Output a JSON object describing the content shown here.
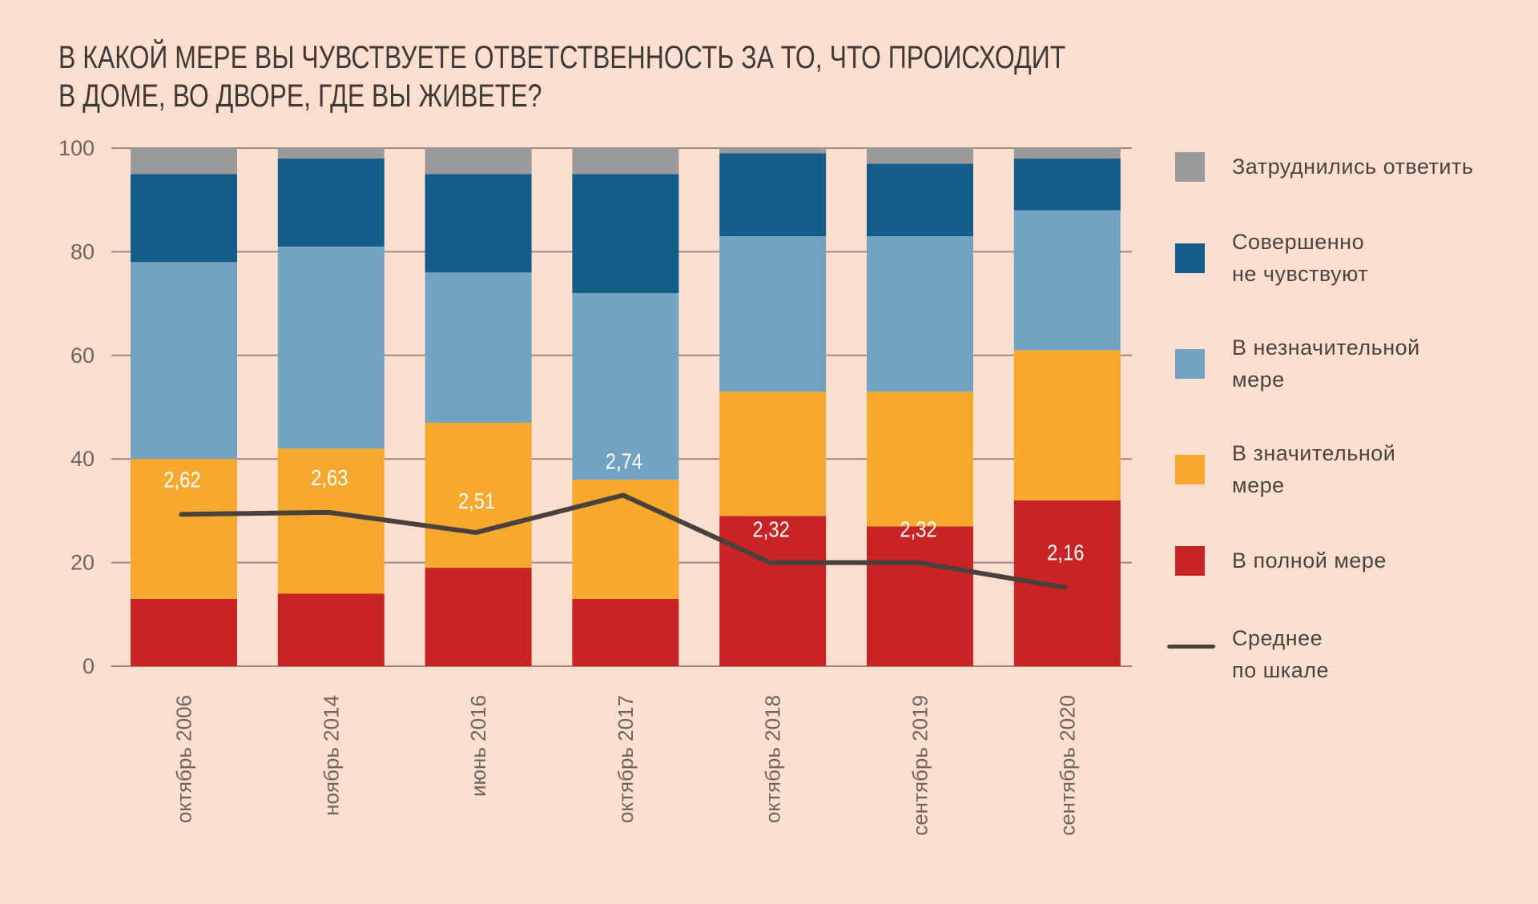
{
  "chart_data": {
    "type": "bar",
    "stacked": true,
    "title": "В КАКОЙ МЕРЕ ВЫ ЧУВСТВУЕТЕ ОТВЕТСТВЕННОСТЬ ЗА ТО, ЧТО ПРОИСХОДИТ В ДОМЕ, ВО ДВОРЕ, ГДЕ ВЫ ЖИВЕТЕ?",
    "title_lines": [
      "В КАКОЙ МЕРЕ ВЫ ЧУВСТВУЕТЕ ОТВЕТСТВЕННОСТЬ ЗА ТО, ЧТО ПРОИСХОДИТ",
      "В ДОМЕ, ВО ДВОРЕ, ГДЕ ВЫ ЖИВЕТЕ?"
    ],
    "xlabel": "",
    "ylabel": "",
    "ylim": [
      0,
      100
    ],
    "yticks": [
      "0",
      "20",
      "40",
      "60",
      "80",
      "100"
    ],
    "grid": true,
    "legend_position": "right",
    "categories": [
      "октябрь 2006",
      "ноябрь 2014",
      "июнь 2016",
      "октябрь 2017",
      "октябрь 2018",
      "сентябрь 2019",
      "сентябрь 2020"
    ],
    "series": [
      {
        "name": "В полной мере",
        "color": "#C82426",
        "values": [
          13,
          14,
          19,
          13,
          29,
          27,
          32
        ]
      },
      {
        "name": "В значительной мере",
        "color": "#F6A92E",
        "values": [
          27,
          28,
          28,
          23,
          24,
          26,
          29
        ]
      },
      {
        "name": "В незначительной мере",
        "color": "#72A3C1",
        "values": [
          38,
          39,
          29,
          36,
          30,
          30,
          27
        ]
      },
      {
        "name": "Совершенно не чувствуют",
        "color": "#135D89",
        "values": [
          17,
          17,
          19,
          23,
          16,
          14,
          10
        ]
      },
      {
        "name": "Затруднились ответить",
        "color": "#9A9A9A",
        "values": [
          5,
          2,
          5,
          5,
          1,
          3,
          2
        ]
      }
    ],
    "line_series": {
      "name": "Среднее по шкале",
      "color": "#4A403C",
      "labels": [
        "2,62",
        "2,63",
        "2,51",
        "2,74",
        "2,32",
        "2,32",
        "2,16"
      ],
      "values": [
        2.62,
        2.63,
        2.51,
        2.74,
        2.32,
        2.32,
        2.16
      ],
      "plotted_on_left_axis": [
        29.3,
        29.7,
        25.8,
        33.0,
        20.0,
        20.0,
        15.2
      ]
    },
    "legend": [
      {
        "lines": [
          "Затруднились ответить"
        ],
        "kind": "swatch",
        "color": "#9A9A9A"
      },
      {
        "lines": [
          "Совершенно",
          "не чувствуют"
        ],
        "kind": "swatch",
        "color": "#135D89"
      },
      {
        "lines": [
          "В незначительной",
          "мере"
        ],
        "kind": "swatch",
        "color": "#72A3C1"
      },
      {
        "lines": [
          "В значительной",
          "мере"
        ],
        "kind": "swatch",
        "color": "#F6A92E"
      },
      {
        "lines": [
          "В полной мере"
        ],
        "kind": "swatch",
        "color": "#C82426"
      },
      {
        "lines": [
          "Среднее",
          "по шкале"
        ],
        "kind": "line",
        "color": "#4A403C"
      }
    ]
  }
}
